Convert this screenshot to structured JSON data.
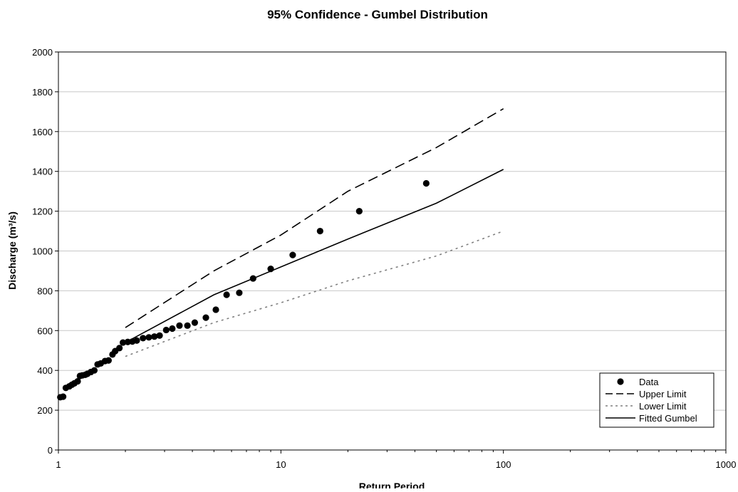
{
  "chart_data": {
    "type": "scatter",
    "title": "95% Confidence - Gumbel Distribution",
    "xlabel": "Return Period",
    "ylabel": "Discharge (m³/s)",
    "xscale": "log",
    "xlim": [
      1,
      1000
    ],
    "ylim": [
      0,
      2000
    ],
    "x_ticks": [
      1,
      10,
      100,
      1000
    ],
    "x_tick_labels": [
      "1",
      "10",
      "100",
      "1000"
    ],
    "y_ticks": [
      0,
      200,
      400,
      600,
      800,
      1000,
      1200,
      1400,
      1600,
      1800,
      2000
    ],
    "y_tick_labels": [
      "0",
      "200",
      "400",
      "600",
      "800",
      "1000",
      "1200",
      "1400",
      "1600",
      "1800",
      "2000"
    ],
    "grid": "horizontal",
    "legend_position": "bottom-right",
    "colors": {
      "series": "#000000",
      "grid": "#c8c8c8",
      "lower_limit": "#808080"
    },
    "series": [
      {
        "name": "Data",
        "kind": "scatter",
        "points": [
          [
            1.02,
            265
          ],
          [
            1.05,
            268
          ],
          [
            1.08,
            312
          ],
          [
            1.12,
            320
          ],
          [
            1.15,
            328
          ],
          [
            1.18,
            335
          ],
          [
            1.22,
            345
          ],
          [
            1.25,
            372
          ],
          [
            1.28,
            375
          ],
          [
            1.32,
            378
          ],
          [
            1.35,
            383
          ],
          [
            1.4,
            392
          ],
          [
            1.45,
            400
          ],
          [
            1.5,
            430
          ],
          [
            1.55,
            435
          ],
          [
            1.62,
            447
          ],
          [
            1.68,
            450
          ],
          [
            1.75,
            480
          ],
          [
            1.8,
            497
          ],
          [
            1.88,
            512
          ],
          [
            1.95,
            540
          ],
          [
            2.05,
            543
          ],
          [
            2.15,
            545
          ],
          [
            2.25,
            550
          ],
          [
            2.4,
            562
          ],
          [
            2.55,
            566
          ],
          [
            2.7,
            570
          ],
          [
            2.85,
            575
          ],
          [
            3.05,
            603
          ],
          [
            3.25,
            610
          ],
          [
            3.5,
            625
          ],
          [
            3.8,
            625
          ],
          [
            4.1,
            640
          ],
          [
            4.6,
            665
          ],
          [
            5.1,
            705
          ],
          [
            5.7,
            780
          ],
          [
            6.5,
            790
          ],
          [
            7.5,
            862
          ],
          [
            9.0,
            910
          ],
          [
            11.3,
            980
          ],
          [
            15.0,
            1100
          ],
          [
            22.5,
            1200
          ],
          [
            45.0,
            1340
          ]
        ]
      },
      {
        "name": "Upper Limit",
        "kind": "line",
        "dash": "dashed",
        "points": [
          [
            2,
            615
          ],
          [
            5,
            900
          ],
          [
            10,
            1080
          ],
          [
            20,
            1300
          ],
          [
            50,
            1520
          ],
          [
            100,
            1715
          ]
        ]
      },
      {
        "name": "Lower Limit",
        "kind": "line",
        "dash": "dotted",
        "points": [
          [
            2,
            470
          ],
          [
            5,
            640
          ],
          [
            10,
            740
          ],
          [
            20,
            850
          ],
          [
            50,
            975
          ],
          [
            100,
            1100
          ]
        ]
      },
      {
        "name": "Fitted Gumbel",
        "kind": "line",
        "dash": "solid",
        "points": [
          [
            2,
            540
          ],
          [
            5,
            780
          ],
          [
            10,
            920
          ],
          [
            20,
            1060
          ],
          [
            50,
            1240
          ],
          [
            100,
            1410
          ]
        ]
      }
    ]
  }
}
